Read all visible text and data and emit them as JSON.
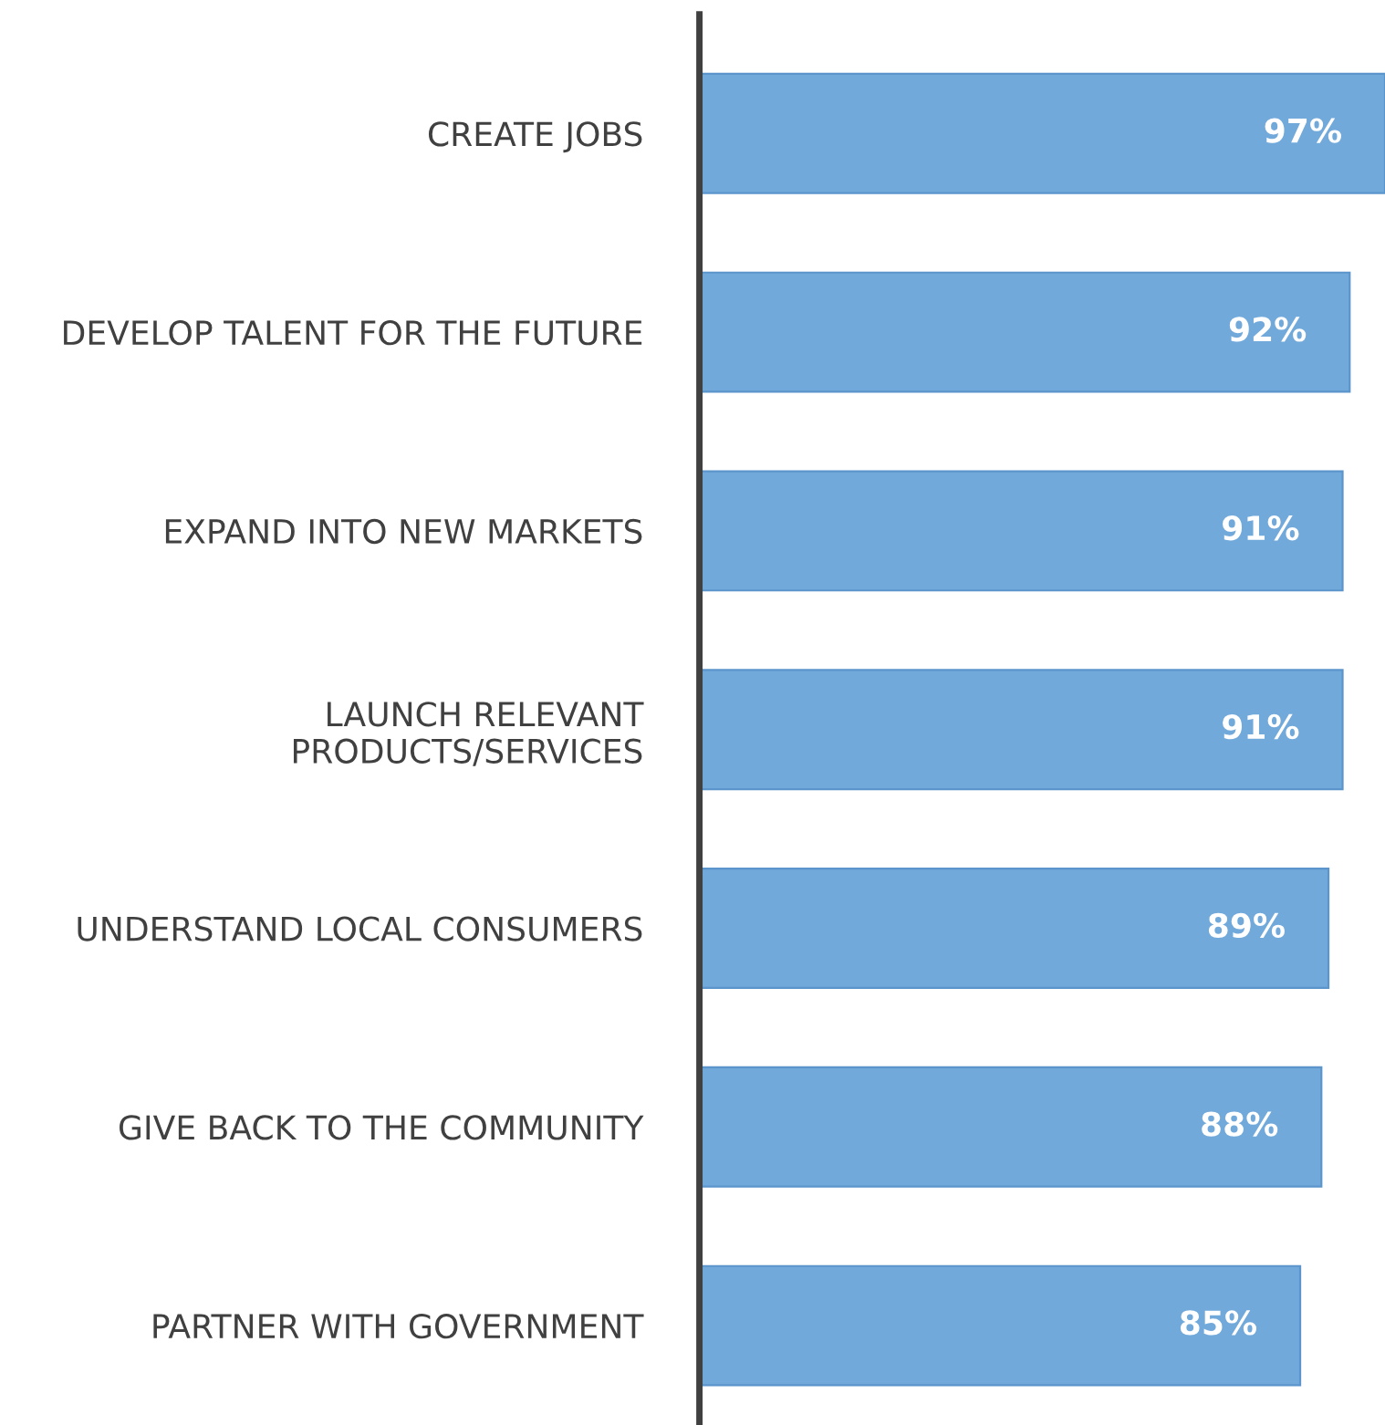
{
  "chart_data": {
    "type": "bar",
    "orientation": "horizontal",
    "categories": [
      "CREATE JOBS",
      "DEVELOP TALENT FOR THE FUTURE",
      "EXPAND INTO NEW MARKETS",
      "LAUNCH RELEVANT\nPRODUCTS/SERVICES",
      "UNDERSTAND LOCAL CONSUMERS",
      "GIVE BACK TO THE COMMUNITY",
      "PARTNER WITH GOVERNMENT"
    ],
    "values": [
      97,
      92,
      91,
      91,
      89,
      88,
      85
    ],
    "value_labels": [
      "97%",
      "92%",
      "91%",
      "91%",
      "89%",
      "88%",
      "85%"
    ],
    "color": "#72a9db",
    "tick_labels": "y",
    "grid": false,
    "legend": false
  }
}
